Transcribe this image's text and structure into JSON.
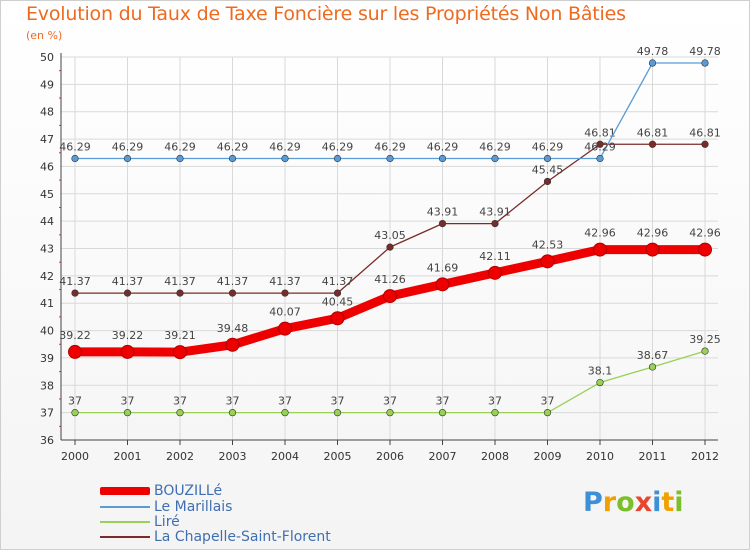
{
  "title": "Evolution du Taux de Taxe Foncière sur les Propriétés Non Bâties",
  "unit_label": "(en %)",
  "logo_text": "Proxiti",
  "colors": {
    "title": "#ee6a1f",
    "legend_text": "#3f6fb3",
    "grid": "#d9d9d9"
  },
  "chart_data": {
    "type": "line",
    "title": "Evolution du Taux de Taxe Foncière sur les Propriétés Non Bâties",
    "ylabel": "(en %)",
    "xlabel": "",
    "x": [
      "2000",
      "2001",
      "2002",
      "2003",
      "2004",
      "2005",
      "2006",
      "2007",
      "2008",
      "2009",
      "2010",
      "2011",
      "2012"
    ],
    "ylim": [
      36,
      50
    ],
    "yticks": [
      36,
      37,
      38,
      39,
      40,
      41,
      42,
      43,
      44,
      45,
      46,
      47,
      48,
      49,
      50
    ],
    "grid": true,
    "legend_position": "bottom-left",
    "series": [
      {
        "name": "BOUZILLé",
        "color": "#ee0000",
        "values": [
          39.22,
          39.22,
          39.21,
          39.48,
          40.07,
          40.45,
          41.26,
          41.69,
          42.11,
          42.53,
          42.96,
          42.96,
          42.96
        ],
        "labels": [
          "39.22",
          "39.22",
          "39.21",
          "39.48",
          "40.07",
          "40.45",
          "41.26",
          "41.69",
          "42.11",
          "42.53",
          "42.96",
          "42.96",
          "42.96"
        ]
      },
      {
        "name": "Le Marillais",
        "color": "#5b9bd5",
        "values": [
          46.29,
          46.29,
          46.29,
          46.29,
          46.29,
          46.29,
          46.29,
          46.29,
          46.29,
          46.29,
          46.29,
          49.78,
          49.78
        ],
        "labels": [
          "46.29",
          "46.29",
          "46.29",
          "46.29",
          "46.29",
          "46.29",
          "46.29",
          "46.29",
          "46.29",
          "46.29",
          "46.29",
          "49.78",
          "49.78"
        ]
      },
      {
        "name": "Liré",
        "color": "#99d155",
        "values": [
          37,
          37,
          37,
          37,
          37,
          37,
          37,
          37,
          37,
          37,
          38.1,
          38.67,
          39.25
        ],
        "labels": [
          "37",
          "37",
          "37",
          "37",
          "37",
          "37",
          "37",
          "37",
          "37",
          "37",
          "38.1",
          "38.67",
          "39.25"
        ]
      },
      {
        "name": "La Chapelle-Saint-Florent",
        "color": "#7a2b2b",
        "values": [
          41.37,
          41.37,
          41.37,
          41.37,
          41.37,
          41.37,
          43.05,
          43.91,
          43.91,
          45.45,
          46.81,
          46.81,
          46.81
        ],
        "labels": [
          "41.37",
          "41.37",
          "41.37",
          "41.37",
          "41.37",
          "41.37",
          "43.05",
          "43.91",
          "43.91",
          "45.45",
          "46.81",
          "46.81",
          "46.81"
        ]
      }
    ]
  }
}
